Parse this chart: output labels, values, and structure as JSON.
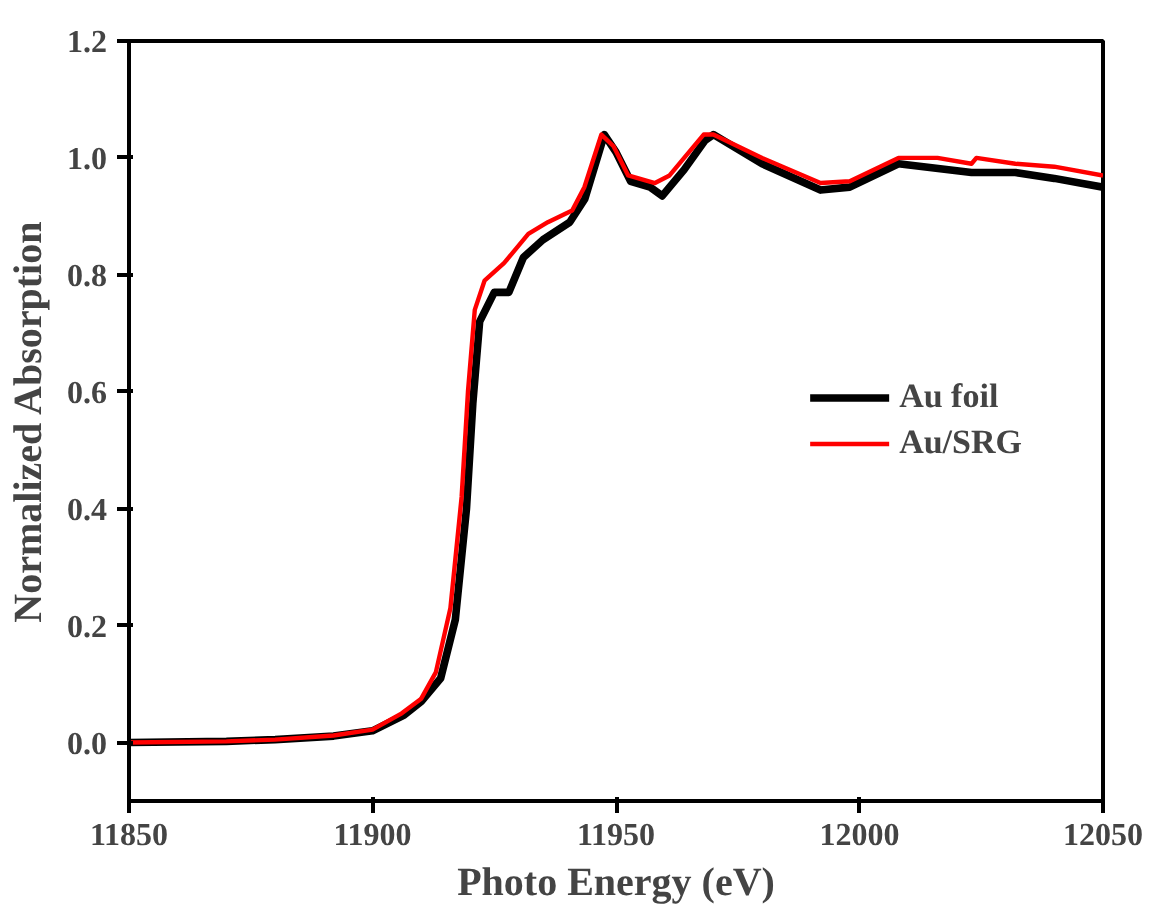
{
  "chart_data": {
    "type": "line",
    "xlabel": "Photo Energy (eV)",
    "ylabel": "Normalized Absorption",
    "xlim": [
      11850,
      12050
    ],
    "xticks": [
      11850,
      11900,
      11950,
      12000,
      12050
    ],
    "ylim": [
      -0.1,
      1.2
    ],
    "yticks": [
      {
        "value": 0,
        "label": "0.0"
      },
      0.2,
      0.4,
      0.6,
      0.8,
      {
        "value": 1,
        "label": "1.0"
      },
      1.2
    ],
    "grid": false,
    "legend": "right",
    "marker": "none",
    "line_style": "solid",
    "series": [
      {
        "name": "Au foil",
        "color": "#000000",
        "x": [
          11850,
          11870,
          11880,
          11892,
          11900,
          11906.5,
          11910,
          11914,
          11917,
          11919.3,
          11920.6,
          11922,
          11925,
          11928,
          11931,
          11935,
          11940.5,
          11943.6,
          11947.6,
          11950,
          11953,
          11957,
          11959.5,
          11964,
          11968.3,
          11970,
          11980,
          11992,
          11998,
          12008,
          12023,
          12032,
          12040,
          12050
        ],
        "values": [
          0,
          0.002,
          0.005,
          0.011,
          0.02,
          0.047,
          0.07,
          0.11,
          0.21,
          0.4,
          0.58,
          0.72,
          0.77,
          0.77,
          0.83,
          0.86,
          0.89,
          0.93,
          1.04,
          1.01,
          0.96,
          0.95,
          0.935,
          0.98,
          1.03,
          1.04,
          0.99,
          0.945,
          0.95,
          0.99,
          0.975,
          0.975,
          0.965,
          0.95
        ]
      },
      {
        "name": "Au/SRG",
        "color": "#ff0000",
        "x": [
          11850,
          11870,
          11880,
          11892,
          11900,
          11906,
          11910,
          11913,
          11916,
          11918.3,
          11919.6,
          11921,
          11923,
          11927,
          11932,
          11936,
          11941,
          11943.5,
          11947,
          11949.5,
          11952.5,
          11958,
          11961,
          11964,
          11968,
          11970,
          11980,
          11992,
          11998,
          12008,
          12016,
          12023,
          12024,
          12032,
          12040,
          12050
        ],
        "values": [
          0,
          0.002,
          0.005,
          0.012,
          0.022,
          0.05,
          0.075,
          0.12,
          0.23,
          0.42,
          0.6,
          0.74,
          0.79,
          0.82,
          0.87,
          0.89,
          0.91,
          0.95,
          1.04,
          1.02,
          0.97,
          0.957,
          0.97,
          1.0,
          1.04,
          1.04,
          1.0,
          0.957,
          0.96,
          1.0,
          1.0,
          0.99,
          1.0,
          0.99,
          0.985,
          0.97
        ]
      }
    ]
  }
}
